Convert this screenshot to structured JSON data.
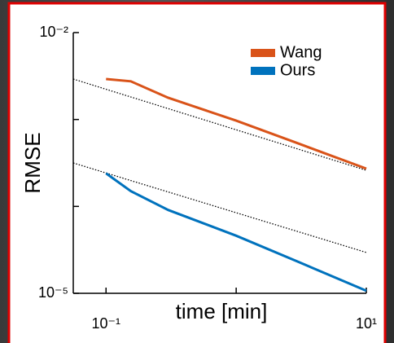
{
  "chart_data": {
    "type": "line",
    "ylabel": "RMSE",
    "xlabel": "time [min]",
    "xscale": "log",
    "yscale": "log",
    "xlim": [
      0.056,
      10
    ],
    "ylim": [
      1e-05,
      0.01
    ],
    "xticks": [
      {
        "value": 0.1,
        "label": "10⁻¹"
      },
      {
        "value": 1,
        "label": null
      },
      {
        "value": 10,
        "label": "10¹"
      }
    ],
    "yticks": [
      {
        "value": 0.01,
        "label": "10⁻²"
      },
      {
        "value": 0.001,
        "label": null
      },
      {
        "value": 0.0001,
        "label": null
      },
      {
        "value": 1e-05,
        "label": "10⁻⁵"
      }
    ],
    "legend": "upper right",
    "series": [
      {
        "name": "Wang",
        "color": "#d95319",
        "x": [
          0.1,
          0.155,
          0.3,
          1,
          3,
          10
        ],
        "values": [
          0.00292,
          0.00275,
          0.00178,
          0.00097,
          0.00053,
          0.000272
        ]
      },
      {
        "name": "Ours",
        "color": "#0072bd",
        "x": [
          0.1,
          0.155,
          0.3,
          1,
          3,
          10
        ],
        "values": [
          0.00024,
          0.00015,
          9.1e-05,
          4.6e-05,
          2.3e-05,
          1.07e-05
        ]
      }
    ],
    "reference_lines": [
      {
        "style": "dotted",
        "color": "#000000",
        "x": [
          0.056,
          10
        ],
        "values": [
          0.00292,
          0.00026
        ]
      },
      {
        "style": "dotted",
        "color": "#000000",
        "x": [
          0.056,
          10
        ],
        "values": [
          0.000316,
          2.95e-05
        ]
      }
    ]
  }
}
